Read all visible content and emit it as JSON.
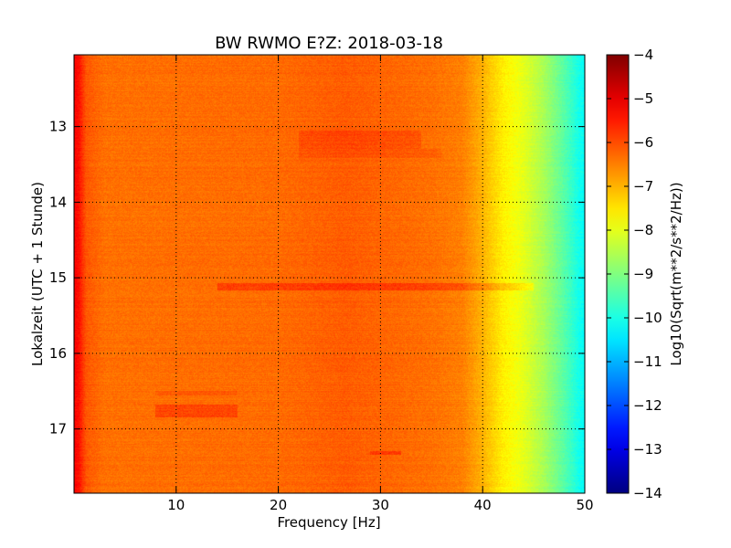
{
  "chart_data": {
    "type": "heatmap",
    "title": "BW RWMO E?Z: 2018-03-18",
    "xlabel": "Frequency [Hz]",
    "ylabel": "Lokalzeit (UTC + 1 Stunde)",
    "xlim": [
      0,
      50
    ],
    "ylim": [
      17.85,
      12.05
    ],
    "x_ticks": [
      {
        "value": 10,
        "label": "10"
      },
      {
        "value": 20,
        "label": "20"
      },
      {
        "value": 30,
        "label": "30"
      },
      {
        "value": 40,
        "label": "40"
      },
      {
        "value": 50,
        "label": "50"
      }
    ],
    "y_ticks": [
      {
        "value": 13,
        "label": "13"
      },
      {
        "value": 14,
        "label": "14"
      },
      {
        "value": 15,
        "label": "15"
      },
      {
        "value": 16,
        "label": "16"
      },
      {
        "value": 17,
        "label": "17"
      }
    ],
    "grid": true,
    "colormap": "jet",
    "colorbar": {
      "label": "Log10(Sqrt(m**2/s**2/Hz))",
      "range": [
        -14,
        -4
      ],
      "ticks": [
        {
          "value": -4,
          "label": "−4"
        },
        {
          "value": -5,
          "label": "−5"
        },
        {
          "value": -6,
          "label": "−6"
        },
        {
          "value": -7,
          "label": "−7"
        },
        {
          "value": -8,
          "label": "−8"
        },
        {
          "value": -9,
          "label": "−9"
        },
        {
          "value": -10,
          "label": "−10"
        },
        {
          "value": -11,
          "label": "−11"
        },
        {
          "value": -12,
          "label": "−12"
        },
        {
          "value": -13,
          "label": "−13"
        },
        {
          "value": -14,
          "label": "−14"
        }
      ]
    },
    "spectrum_profile": [
      {
        "f": 0.0,
        "level": -5.2
      },
      {
        "f": 0.5,
        "level": -5.4
      },
      {
        "f": 1.2,
        "level": -6.1
      },
      {
        "f": 3.0,
        "level": -6.35
      },
      {
        "f": 20.0,
        "level": -6.3
      },
      {
        "f": 26.5,
        "level": -6.15
      },
      {
        "f": 35.0,
        "level": -6.35
      },
      {
        "f": 38.0,
        "level": -6.5
      },
      {
        "f": 40.0,
        "level": -7.0
      },
      {
        "f": 42.0,
        "level": -7.6
      },
      {
        "f": 44.0,
        "level": -8.0
      },
      {
        "f": 46.0,
        "level": -8.6
      },
      {
        "f": 48.0,
        "level": -9.4
      },
      {
        "f": 49.5,
        "level": -10.1
      },
      {
        "f": 50.0,
        "level": -10.2
      }
    ],
    "features": [
      {
        "t_start": 15.07,
        "t_end": 15.17,
        "f_start": 14.0,
        "f_end": 45.0,
        "delta": 0.55
      },
      {
        "t_start": 13.05,
        "t_end": 13.3,
        "f_start": 22.0,
        "f_end": 34.0,
        "delta": 0.3
      },
      {
        "t_start": 16.68,
        "t_end": 16.85,
        "f_start": 8.0,
        "f_end": 16.0,
        "delta": 0.5
      },
      {
        "t_start": 16.5,
        "t_end": 16.56,
        "f_start": 8.0,
        "f_end": 16.0,
        "delta": 0.25
      },
      {
        "t_start": 17.3,
        "t_end": 17.34,
        "f_start": 29.0,
        "f_end": 32.0,
        "delta": 0.6
      },
      {
        "t_start": 13.3,
        "t_end": 13.42,
        "f_start": 22.0,
        "f_end": 36.0,
        "delta": 0.2
      }
    ]
  }
}
